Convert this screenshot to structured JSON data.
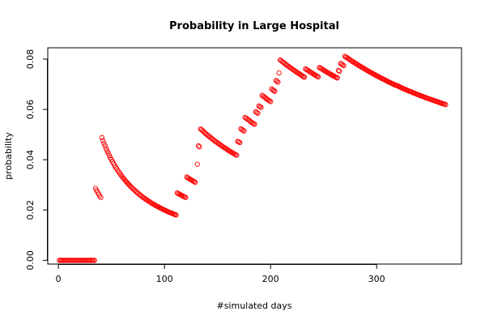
{
  "chart_data": {
    "type": "scatter",
    "title": "Probability in Large Hospital",
    "xlabel": "#simulated days",
    "ylabel": "probability",
    "xlim": [
      -10,
      380
    ],
    "ylim": [
      -0.0015,
      0.0845
    ],
    "xticks": [
      0,
      100,
      200,
      300
    ],
    "xtick_labels": [
      "0",
      "100",
      "200",
      "300"
    ],
    "yticks": [
      0.0,
      0.02,
      0.04,
      0.06,
      0.08
    ],
    "ytick_labels": [
      "0.00",
      "0.02",
      "0.04",
      "0.06",
      "0.08"
    ],
    "grid": false,
    "legend": "none",
    "marker": "open-circle",
    "color": "#ff0000",
    "series": [
      {
        "segments": [
          {
            "x_start": 1,
            "x_end": 34,
            "values": [
              0,
              0,
              0,
              0,
              0,
              0,
              0,
              0,
              0,
              0,
              0,
              0,
              0,
              0,
              0,
              0,
              0,
              0,
              0,
              0,
              0,
              0,
              0,
              0,
              0,
              0,
              0,
              0,
              0,
              0,
              0,
              0,
              0,
              0
            ]
          },
          {
            "x_start": 35,
            "x_end": 40,
            "values": [
              0.0286,
              0.0278,
              0.027,
              0.0263,
              0.0256,
              0.025
            ]
          },
          {
            "x_start": 41,
            "x_end": 111,
            "values": [
              0.0488,
              0.0476,
              0.0465,
              0.0455,
              0.0444,
              0.0435,
              0.0426,
              0.0417,
              0.0408,
              0.04,
              0.0392,
              0.0385,
              0.0377,
              0.037,
              0.0364,
              0.0357,
              0.0351,
              0.0345,
              0.0339,
              0.0333,
              0.0328,
              0.0323,
              0.0317,
              0.0313,
              0.0308,
              0.0303,
              0.0299,
              0.0294,
              0.029,
              0.0286,
              0.0282,
              0.0278,
              0.0274,
              0.027,
              0.0267,
              0.0263,
              0.026,
              0.0256,
              0.0253,
              0.025,
              0.0247,
              0.0244,
              0.0241,
              0.0238,
              0.0235,
              0.0233,
              0.023,
              0.0227,
              0.0225,
              0.0222,
              0.022,
              0.0217,
              0.0215,
              0.0213,
              0.0211,
              0.0208,
              0.0206,
              0.0204,
              0.0202,
              0.02,
              0.0198,
              0.0196,
              0.0194,
              0.0192,
              0.019,
              0.0189,
              0.0187,
              0.0185,
              0.0183,
              0.0182,
              0.018
            ]
          },
          {
            "x_start": 112,
            "x_end": 120,
            "values": [
              0.0268,
              0.0265,
              0.0263,
              0.0261,
              0.0259,
              0.0256,
              0.0254,
              0.0252,
              0.025
            ]
          },
          {
            "x_start": 121,
            "x_end": 129,
            "values": [
              0.0331,
              0.0328,
              0.0325,
              0.0323,
              0.032,
              0.0318,
              0.0315,
              0.0313,
              0.031
            ]
          },
          {
            "x_start": 131,
            "x_end": 131,
            "values": [
              0.0382
            ]
          },
          {
            "x_start": 132,
            "x_end": 133,
            "values": [
              0.0455,
              0.0451
            ]
          },
          {
            "x_start": 134,
            "x_end": 168,
            "values": [
              0.0522,
              0.0519,
              0.0515,
              0.0511,
              0.0507,
              0.0503,
              0.05,
              0.0496,
              0.0493,
              0.049,
              0.0486,
              0.0483,
              0.048,
              0.0476,
              0.0473,
              0.047,
              0.0467,
              0.0464,
              0.0461,
              0.0458,
              0.0455,
              0.0452,
              0.0449,
              0.0447,
              0.0444,
              0.0441,
              0.0438,
              0.0436,
              0.0433,
              0.043,
              0.0428,
              0.0425,
              0.0423,
              0.042,
              0.0418
            ]
          },
          {
            "x_start": 169,
            "x_end": 171,
            "values": [
              0.0473,
              0.0471,
              0.0468
            ]
          },
          {
            "x_start": 172,
            "x_end": 175,
            "values": [
              0.0523,
              0.052,
              0.0517,
              0.0514
            ]
          },
          {
            "x_start": 176,
            "x_end": 185,
            "values": [
              0.0568,
              0.0565,
              0.0562,
              0.0559,
              0.0556,
              0.0552,
              0.0549,
              0.0546,
              0.0543,
              0.0541
            ]
          },
          {
            "x_start": 186,
            "x_end": 188,
            "values": [
              0.0591,
              0.0588,
              0.0585
            ]
          },
          {
            "x_start": 189,
            "x_end": 191,
            "values": [
              0.0614,
              0.0611,
              0.0608
            ]
          },
          {
            "x_start": 192,
            "x_end": 200,
            "values": [
              0.0656,
              0.0653,
              0.065,
              0.0647,
              0.0643,
              0.064,
              0.0637,
              0.0634,
              0.0631
            ]
          },
          {
            "x_start": 201,
            "x_end": 204,
            "values": [
              0.0682,
              0.0678,
              0.0675,
              0.0672
            ]
          },
          {
            "x_start": 205,
            "x_end": 207,
            "values": [
              0.0715,
              0.0712,
              0.0708
            ]
          },
          {
            "x_start": 208,
            "x_end": 208,
            "values": [
              0.0745
            ]
          },
          {
            "x_start": 209,
            "x_end": 232,
            "values": [
              0.0797,
              0.0794,
              0.079,
              0.0787,
              0.0784,
              0.078,
              0.0777,
              0.0774,
              0.0771,
              0.0768,
              0.0765,
              0.0762,
              0.0759,
              0.0756,
              0.0753,
              0.075,
              0.0747,
              0.0744,
              0.0742,
              0.0739,
              0.0736,
              0.0733,
              0.073,
              0.0728
            ]
          },
          {
            "x_start": 233,
            "x_end": 245,
            "values": [
              0.0761,
              0.0758,
              0.0756,
              0.0753,
              0.075,
              0.0747,
              0.0745,
              0.0742,
              0.0739,
              0.0737,
              0.0734,
              0.0732,
              0.0729
            ]
          },
          {
            "x_start": 246,
            "x_end": 263,
            "values": [
              0.0767,
              0.0764,
              0.0762,
              0.0759,
              0.0756,
              0.0754,
              0.0751,
              0.0749,
              0.0746,
              0.0744,
              0.0741,
              0.0739,
              0.0736,
              0.0734,
              0.0732,
              0.0729,
              0.0727,
              0.0725
            ]
          },
          {
            "x_start": 264,
            "x_end": 265,
            "values": [
              0.0755,
              0.0752
            ]
          },
          {
            "x_start": 266,
            "x_end": 269,
            "values": [
              0.0783,
              0.078,
              0.0777,
              0.0774
            ]
          },
          {
            "x_start": 270,
            "x_end": 365,
            "values": [
              0.0811,
              0.0808,
              0.0806,
              0.0803,
              0.08,
              0.0797,
              0.0794,
              0.0791,
              0.0789,
              0.0786,
              0.0783,
              0.0781,
              0.0778,
              0.0775,
              0.0773,
              0.077,
              0.0768,
              0.0765,
              0.0763,
              0.076,
              0.0758,
              0.0755,
              0.0753,
              0.075,
              0.0748,
              0.0746,
              0.0743,
              0.0741,
              0.0739,
              0.0736,
              0.0734,
              0.0732,
              0.073,
              0.0727,
              0.0725,
              0.0723,
              0.0721,
              0.0719,
              0.0717,
              0.0715,
              0.0712,
              0.071,
              0.0708,
              0.0706,
              0.0704,
              0.0702,
              0.07,
              0.0698,
              0.0696,
              0.0695,
              0.0693,
              0.0691,
              0.0689,
              0.0687,
              0.0685,
              0.0683,
              0.0681,
              0.068,
              0.0678,
              0.0676,
              0.0674,
              0.0672,
              0.0671,
              0.0669,
              0.0667,
              0.0665,
              0.0664,
              0.0662,
              0.066,
              0.0659,
              0.0657,
              0.0655,
              0.0654,
              0.0652,
              0.0651,
              0.0649,
              0.0647,
              0.0646,
              0.0644,
              0.0643,
              0.0641,
              0.064,
              0.0638,
              0.0637,
              0.0635,
              0.0634,
              0.0632,
              0.0631,
              0.0629,
              0.0628,
              0.0626,
              0.0625,
              0.0623,
              0.0622,
              0.0621,
              0.0619
            ]
          }
        ]
      }
    ]
  }
}
